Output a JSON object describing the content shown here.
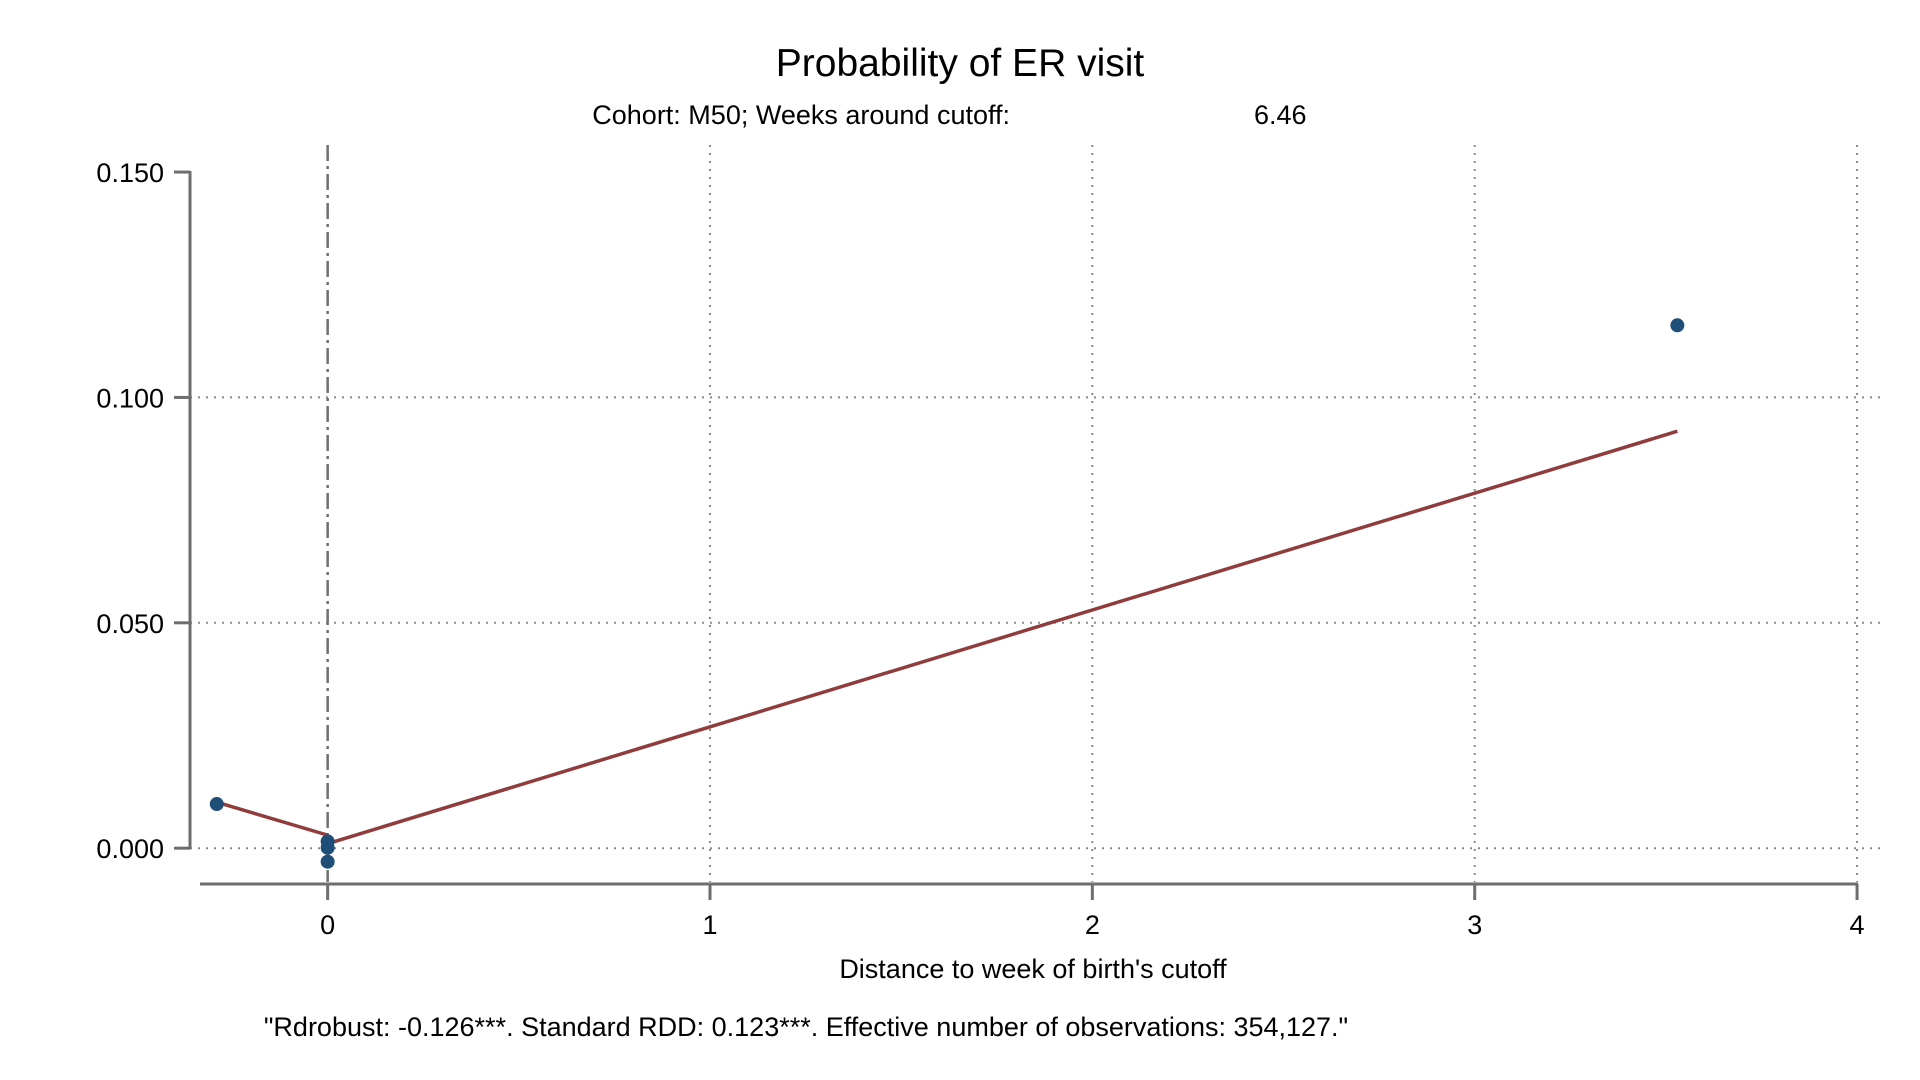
{
  "chart_data": {
    "type": "scatter",
    "title": "Probability of ER visit",
    "subtitle": {
      "label": "Cohort: M50; Weeks around cutoff:",
      "value": "6.46"
    },
    "xlabel": "Distance to week of birth's cutoff",
    "ylabel": "",
    "note": "\"Rdrobust: -0.126***. Standard RDD: 0.123***. Effective number of observations: 354,127.\"",
    "xlim": [
      -0.36,
      4.06
    ],
    "ylim": [
      -0.0075,
      0.156
    ],
    "x_ticks": [
      {
        "value": 0,
        "label": "0"
      },
      {
        "value": 1,
        "label": "1"
      },
      {
        "value": 2,
        "label": "2"
      },
      {
        "value": 3,
        "label": "3"
      },
      {
        "value": 4,
        "label": "4"
      }
    ],
    "y_ticks": [
      {
        "value": 0.0,
        "label": "0.000"
      },
      {
        "value": 0.05,
        "label": "0.050"
      },
      {
        "value": 0.1,
        "label": "0.100"
      },
      {
        "value": 0.15,
        "label": "0.150"
      }
    ],
    "cutoff_x": 0,
    "grid": true,
    "series": [
      {
        "kind": "scatter",
        "color": "#1f4e79",
        "points": [
          {
            "x": -0.29,
            "y": 0.0098
          },
          {
            "x": 0.0,
            "y": 0.0015
          },
          {
            "x": 0.0,
            "y": 0.0001
          },
          {
            "x": 0.0,
            "y": -0.003
          },
          {
            "x": 3.53,
            "y": 0.116
          }
        ]
      },
      {
        "kind": "line",
        "color": "#903c3c",
        "points": [
          {
            "x": -0.29,
            "y": 0.0102
          },
          {
            "x": 0.0,
            "y": 0.0029
          }
        ]
      },
      {
        "kind": "line",
        "color": "#903c3c",
        "points": [
          {
            "x": 0.0,
            "y": 0.001
          },
          {
            "x": 3.53,
            "y": 0.0925
          }
        ]
      }
    ]
  }
}
